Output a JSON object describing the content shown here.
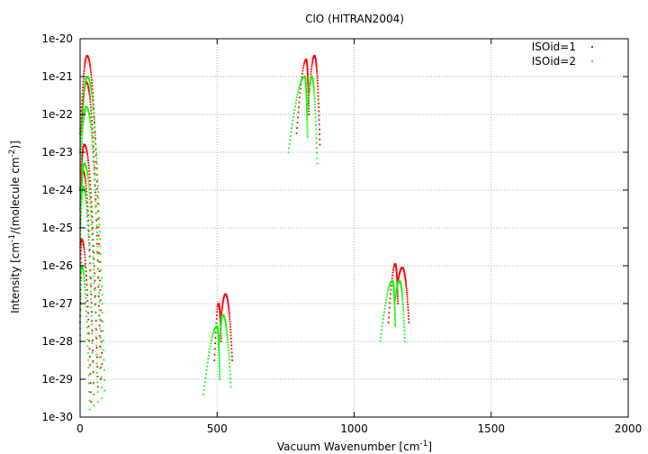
{
  "chart_data": {
    "type": "scatter",
    "title": "ClO (HITRAN2004)",
    "xlabel": "Vacuum Wavenumber [cm-1]",
    "xlabel_parts": {
      "prefix": "Vacuum Wavenumber [cm",
      "sup": "-1",
      "suffix": "]"
    },
    "ylabel": "Intensity [cm-1/(molecule cm-2)]",
    "ylabel_parts": {
      "a": "Intensity [cm",
      "sup1": "-1",
      "b": "/(molecule cm",
      "sup2": "-2",
      "c": ")]"
    },
    "xlim": [
      0,
      2000
    ],
    "ylim_log10": [
      -30,
      -20
    ],
    "y_scale": "log",
    "grid": true,
    "legend_position": "top-right",
    "x_ticks": [
      {
        "value": 0,
        "label": "0"
      },
      {
        "value": 500,
        "label": "500"
      },
      {
        "value": 1000,
        "label": "1000"
      },
      {
        "value": 1500,
        "label": "1500"
      },
      {
        "value": 2000,
        "label": "2000"
      }
    ],
    "y_ticks": [
      {
        "exp": -20,
        "label": "1e-20"
      },
      {
        "exp": -21,
        "label": "1e-21"
      },
      {
        "exp": -22,
        "label": "1e-22"
      },
      {
        "exp": -23,
        "label": "1e-23"
      },
      {
        "exp": -24,
        "label": "1e-24"
      },
      {
        "exp": -25,
        "label": "1e-25"
      },
      {
        "exp": -26,
        "label": "1e-26"
      },
      {
        "exp": -27,
        "label": "1e-27"
      },
      {
        "exp": -28,
        "label": "1e-28"
      },
      {
        "exp": -29,
        "label": "1e-29"
      },
      {
        "exp": -30,
        "label": "1e-30"
      }
    ],
    "series": [
      {
        "name": "ISOid=1",
        "color": "#ff0000",
        "bands": [
          {
            "x_start": 0,
            "x_peak": 25,
            "x_end": 80,
            "peak_log": -20.45,
            "start_log": -22.5,
            "end_log": -28.6
          },
          {
            "x_start": 0,
            "x_peak": 22,
            "x_end": 75,
            "peak_log": -21.15,
            "start_log": -23.0,
            "end_log": -29.0
          },
          {
            "x_start": 0,
            "x_peak": 15,
            "x_end": 65,
            "peak_log": -22.8,
            "start_log": -24.0,
            "end_log": -29.2
          },
          {
            "x_start": 0,
            "x_peak": 10,
            "x_end": 50,
            "peak_log": -23.5,
            "start_log": -25.0,
            "end_log": -29.4
          },
          {
            "x_start": 0,
            "x_peak": 5,
            "x_end": 40,
            "peak_log": -25.3,
            "start_log": -27.5,
            "end_log": -29.6
          },
          {
            "x_start": 490,
            "x_peak": 505,
            "x_end": 515,
            "peak_log": -27.0,
            "start_log": -28.5,
            "end_log": -28.0
          },
          {
            "x_start": 515,
            "x_peak": 530,
            "x_end": 555,
            "peak_log": -26.75,
            "start_log": -27.3,
            "end_log": -28.5
          },
          {
            "x_start": 790,
            "x_peak": 825,
            "x_end": 835,
            "peak_log": -20.55,
            "start_log": -22.5,
            "end_log": -22.0
          },
          {
            "x_start": 835,
            "x_peak": 855,
            "x_end": 875,
            "peak_log": -20.45,
            "start_log": -21.5,
            "end_log": -22.8
          },
          {
            "x_start": 1125,
            "x_peak": 1150,
            "x_end": 1160,
            "peak_log": -25.95,
            "start_log": -27.5,
            "end_log": -27.0
          },
          {
            "x_start": 1160,
            "x_peak": 1175,
            "x_end": 1200,
            "peak_log": -26.05,
            "start_log": -26.4,
            "end_log": -27.5
          }
        ]
      },
      {
        "name": "ISOid=2",
        "color": "#00ff00",
        "bands": [
          {
            "x_start": 0,
            "x_peak": 25,
            "x_end": 90,
            "peak_log": -21.0,
            "start_log": -23.0,
            "end_log": -29.3
          },
          {
            "x_start": 0,
            "x_peak": 22,
            "x_end": 80,
            "peak_log": -21.8,
            "start_log": -23.5,
            "end_log": -29.5
          },
          {
            "x_start": 0,
            "x_peak": 15,
            "x_end": 65,
            "peak_log": -23.3,
            "start_log": -24.5,
            "end_log": -29.6
          },
          {
            "x_start": 0,
            "x_peak": 10,
            "x_end": 50,
            "peak_log": -23.9,
            "start_log": -25.5,
            "end_log": -29.7
          },
          {
            "x_start": 0,
            "x_peak": 5,
            "x_end": 35,
            "peak_log": -26.0,
            "start_log": -28.0,
            "end_log": -29.8
          },
          {
            "x_start": 450,
            "x_peak": 500,
            "x_end": 510,
            "peak_log": -27.6,
            "start_log": -29.4,
            "end_log": -29.0
          },
          {
            "x_start": 510,
            "x_peak": 520,
            "x_end": 550,
            "peak_log": -27.3,
            "start_log": -28.0,
            "end_log": -29.2
          },
          {
            "x_start": 760,
            "x_peak": 820,
            "x_end": 830,
            "peak_log": -21.0,
            "start_log": -23.0,
            "end_log": -22.6
          },
          {
            "x_start": 830,
            "x_peak": 845,
            "x_end": 865,
            "peak_log": -21.0,
            "start_log": -22.0,
            "end_log": -23.3
          },
          {
            "x_start": 1095,
            "x_peak": 1140,
            "x_end": 1150,
            "peak_log": -26.4,
            "start_log": -28.0,
            "end_log": -27.6
          },
          {
            "x_start": 1150,
            "x_peak": 1165,
            "x_end": 1185,
            "peak_log": -26.4,
            "start_log": -26.9,
            "end_log": -28.0
          }
        ]
      }
    ]
  }
}
